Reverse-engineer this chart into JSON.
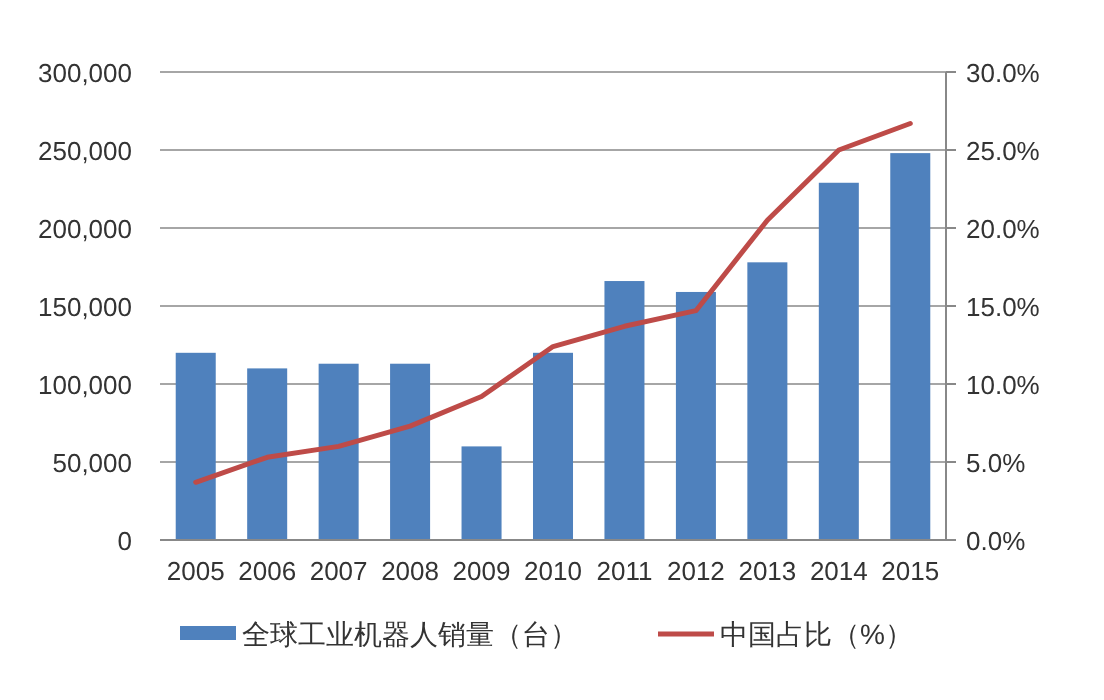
{
  "chart_data": {
    "type": "bar",
    "categories": [
      "2005",
      "2006",
      "2007",
      "2008",
      "2009",
      "2010",
      "2011",
      "2012",
      "2013",
      "2014",
      "2015"
    ],
    "series": [
      {
        "name": "全球工业机器人销量（台）",
        "color": "#4f81bd",
        "values": [
          120000,
          110000,
          113000,
          113000,
          60000,
          120000,
          166000,
          159000,
          178000,
          229000,
          248000
        ]
      },
      {
        "name": "中国占比（%）",
        "color": "#be4b48",
        "type": "line",
        "axis": "y2",
        "values": [
          3.7,
          5.3,
          6.0,
          7.3,
          9.2,
          12.4,
          13.7,
          14.7,
          20.5,
          25.0,
          26.7
        ]
      }
    ],
    "ylim": [
      0,
      300000
    ],
    "yticks": [
      {
        "value": 0,
        "label": "0"
      },
      {
        "value": 50000,
        "label": "50,000"
      },
      {
        "value": 100000,
        "label": "100,000"
      },
      {
        "value": 150000,
        "label": "150,000"
      },
      {
        "value": 200000,
        "label": "200,000"
      },
      {
        "value": 250000,
        "label": "250,000"
      },
      {
        "value": 300000,
        "label": "300,000"
      }
    ],
    "y2lim": [
      0,
      30
    ],
    "y2ticks": [
      {
        "value": 0,
        "label": "0.0%"
      },
      {
        "value": 5,
        "label": "5.0%"
      },
      {
        "value": 10,
        "label": "10.0%"
      },
      {
        "value": 15,
        "label": "15.0%"
      },
      {
        "value": 20,
        "label": "20.0%"
      },
      {
        "value": 25,
        "label": "25.0%"
      },
      {
        "value": 30,
        "label": "30.0%"
      }
    ],
    "grid": "y",
    "legend": "bottom"
  }
}
